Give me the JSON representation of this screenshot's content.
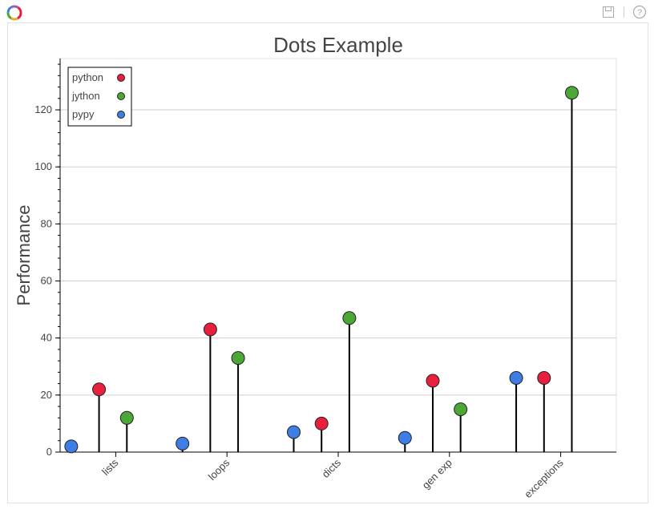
{
  "app": {
    "logo_icon": "bokeh-logo-icon",
    "toolbar": {
      "save_icon": "save-icon",
      "help_icon": "help-icon"
    }
  },
  "chart_data": {
    "type": "scatter",
    "title": "Dots Example",
    "xlabel": "",
    "ylabel": "Performance",
    "categories": [
      "lists",
      "loops",
      "dicts",
      "gen exp",
      "exceptions"
    ],
    "ylim": [
      0,
      138
    ],
    "yticks": [
      0,
      20,
      40,
      60,
      80,
      100,
      120
    ],
    "grid": true,
    "legend_position": "top-left",
    "series": [
      {
        "name": "python",
        "color": "#e8203e",
        "values": [
          22,
          43,
          10,
          25,
          26
        ]
      },
      {
        "name": "jython",
        "color": "#4ba736",
        "values": [
          12,
          33,
          47,
          15,
          126
        ]
      },
      {
        "name": "pypy",
        "color": "#3e7de4",
        "values": [
          2,
          3,
          7,
          5,
          26
        ]
      }
    ]
  }
}
